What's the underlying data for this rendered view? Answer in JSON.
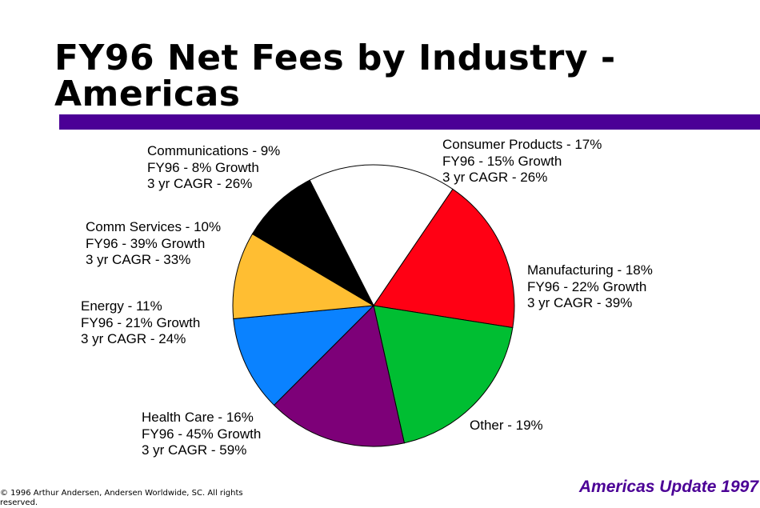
{
  "slide": {
    "title": "FY96 Net Fees by Industry - Americas",
    "copyright": "© 1996 Arthur Andersen, Andersen Worldwide, SC.  All rights reserved.",
    "footer": "Americas Update 1997",
    "rule_color": "#4B0096",
    "footer_color": "#4B0096"
  },
  "chart_data": {
    "type": "pie",
    "title": "FY96 Net Fees by Industry - Americas",
    "slices": [
      {
        "name": "Consumer Products",
        "value": 17,
        "color": "#FFFFFF",
        "lines": [
          "Consumer Products - 17%",
          "FY96 - 15% Growth",
          "3 yr CAGR - 26%"
        ]
      },
      {
        "name": "Manufacturing",
        "value": 18,
        "color": "#FF0014",
        "lines": [
          "Manufacturing - 18%",
          "FY96 - 22% Growth",
          "3 yr CAGR - 39%"
        ]
      },
      {
        "name": "Other",
        "value": 19,
        "color": "#00BE32",
        "lines": [
          "Other - 19%"
        ]
      },
      {
        "name": "Health Care",
        "value": 16,
        "color": "#7D0078",
        "lines": [
          "Health Care - 16%",
          "FY96 - 45% Growth",
          "3 yr CAGR - 59%"
        ]
      },
      {
        "name": "Energy",
        "value": 11,
        "color": "#0A82FF",
        "lines": [
          "Energy - 11%",
          "FY96 - 21% Growth",
          "3 yr CAGR - 24%"
        ]
      },
      {
        "name": "Comm Services",
        "value": 10,
        "color": "#FFBE32",
        "lines": [
          "Comm Services - 10%",
          "FY96 - 39% Growth",
          "3 yr CAGR - 33%"
        ]
      },
      {
        "name": "Communications",
        "value": 9,
        "color": "#000000",
        "lines": [
          "Communications - 9%",
          "FY96 - 8% Growth",
          "3 yr CAGR - 26%"
        ]
      }
    ]
  }
}
